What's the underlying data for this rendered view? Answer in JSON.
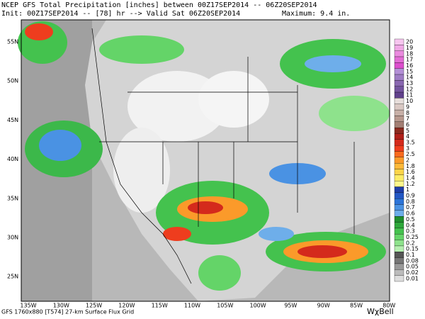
{
  "header": {
    "line1": "NCEP GFS Total Precipitation [inches] between 00Z17SEP2014 -- 06Z20SEP2014",
    "line2": "Init: 00Z17SEP2014 -- [78] hr --> Valid Sat 06Z20SEP2014",
    "maximum": "Maximum:   9.4 in."
  },
  "map": {
    "latitude_labels": [
      "55N",
      "50N",
      "45N",
      "40N",
      "35N",
      "30N",
      "25N"
    ],
    "longitude_labels": [
      "135W",
      "130W",
      "125W",
      "120W",
      "115W",
      "110W",
      "105W",
      "100W",
      "95W",
      "90W",
      "85W",
      "80W"
    ]
  },
  "colorbar": [
    {
      "label": "20",
      "color": "#f7c6ef"
    },
    {
      "label": "19",
      "color": "#f0a8e6"
    },
    {
      "label": "18",
      "color": "#ea8ade"
    },
    {
      "label": "17",
      "color": "#e36cd6"
    },
    {
      "label": "16",
      "color": "#dc4ecd"
    },
    {
      "label": "15",
      "color": "#b38fd6"
    },
    {
      "label": "14",
      "color": "#9f7cc4"
    },
    {
      "label": "13",
      "color": "#8a68b1"
    },
    {
      "label": "12",
      "color": "#75559f"
    },
    {
      "label": "11",
      "color": "#61418c"
    },
    {
      "label": "10",
      "color": "#e7dedb"
    },
    {
      "label": "9",
      "color": "#d9c8c3"
    },
    {
      "label": "8",
      "color": "#c8b0a8"
    },
    {
      "label": "7",
      "color": "#b8998f"
    },
    {
      "label": "6",
      "color": "#a37f74"
    },
    {
      "label": "5",
      "color": "#8c2a1f"
    },
    {
      "label": "4",
      "color": "#b0201a"
    },
    {
      "label": "3.5",
      "color": "#d42a1c"
    },
    {
      "label": "3",
      "color": "#ee3d1e"
    },
    {
      "label": "2.5",
      "color": "#f96b1f"
    },
    {
      "label": "2",
      "color": "#fb9a2a"
    },
    {
      "label": "1.8",
      "color": "#fdb93a"
    },
    {
      "label": "1.6",
      "color": "#fdd54a"
    },
    {
      "label": "1.4",
      "color": "#fdec66"
    },
    {
      "label": "1.2",
      "color": "#fff78c"
    },
    {
      "label": "1",
      "color": "#1f3ea8"
    },
    {
      "label": "0.9",
      "color": "#2357c4"
    },
    {
      "label": "0.8",
      "color": "#2c74d8"
    },
    {
      "label": "0.7",
      "color": "#4a92e3"
    },
    {
      "label": "0.6",
      "color": "#6eaeea"
    },
    {
      "label": "0.5",
      "color": "#1f8f2d"
    },
    {
      "label": "0.4",
      "color": "#2ea83b"
    },
    {
      "label": "0.3",
      "color": "#44c24e"
    },
    {
      "label": "0.25",
      "color": "#64d468"
    },
    {
      "label": "0.2",
      "color": "#8ee28c"
    },
    {
      "label": "0.15",
      "color": "#b5efb0"
    },
    {
      "label": "0.1",
      "color": "#555555"
    },
    {
      "label": "0.08",
      "color": "#777777"
    },
    {
      "label": "0.05",
      "color": "#999999"
    },
    {
      "label": "0.02",
      "color": "#bbbbbb"
    },
    {
      "label": "0.01",
      "color": "#dddddd"
    }
  ],
  "footer": {
    "grid": "GFS 1760x880 [T574] 27-km Surface Flux Grid",
    "logo": "WχBell"
  }
}
